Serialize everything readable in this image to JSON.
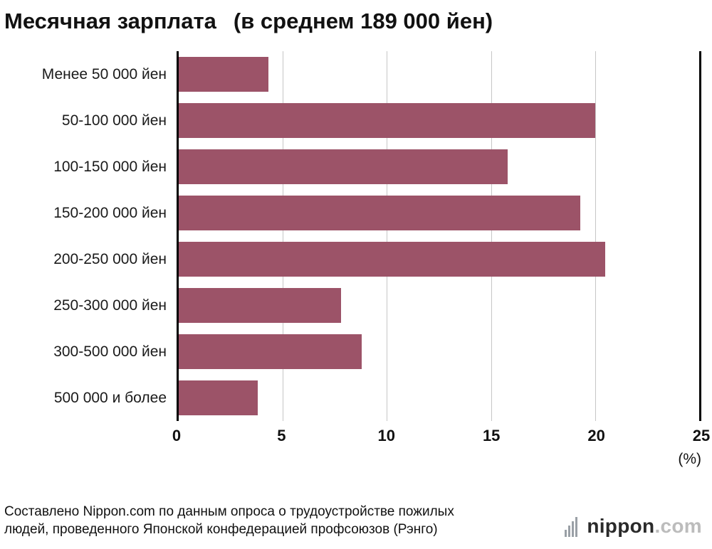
{
  "title": {
    "main": "Месячная зарплата",
    "note": "(в среднем 189 000 йен)"
  },
  "chart_data": {
    "type": "bar",
    "orientation": "horizontal",
    "title": "Месячная зарплата (в среднем 189 000 йен)",
    "categories": [
      "Менее 50 000 йен",
      "50-100 000 йен",
      "100-150 000 йен",
      "150-200 000 йен",
      "200-250 000 йен",
      "250-300 000 йен",
      "300-500 000 йен",
      "500 000 и более"
    ],
    "values": [
      4.3,
      20.0,
      15.8,
      19.3,
      20.5,
      7.8,
      8.8,
      3.8
    ],
    "xlim": [
      0,
      25
    ],
    "xticks": [
      0,
      5,
      10,
      15,
      20,
      25
    ],
    "xlabel": "(%)",
    "bar_color": "#9c5368",
    "grid": true,
    "legend": false
  },
  "footer": {
    "source": "Составлено Nippon.com по данным опроса о трудоустройстве пожилых людей, проведенного Японской конфедерацией профсоюзов (Рэнго)",
    "logo_name": "nippon",
    "logo_suffix": ".com"
  }
}
